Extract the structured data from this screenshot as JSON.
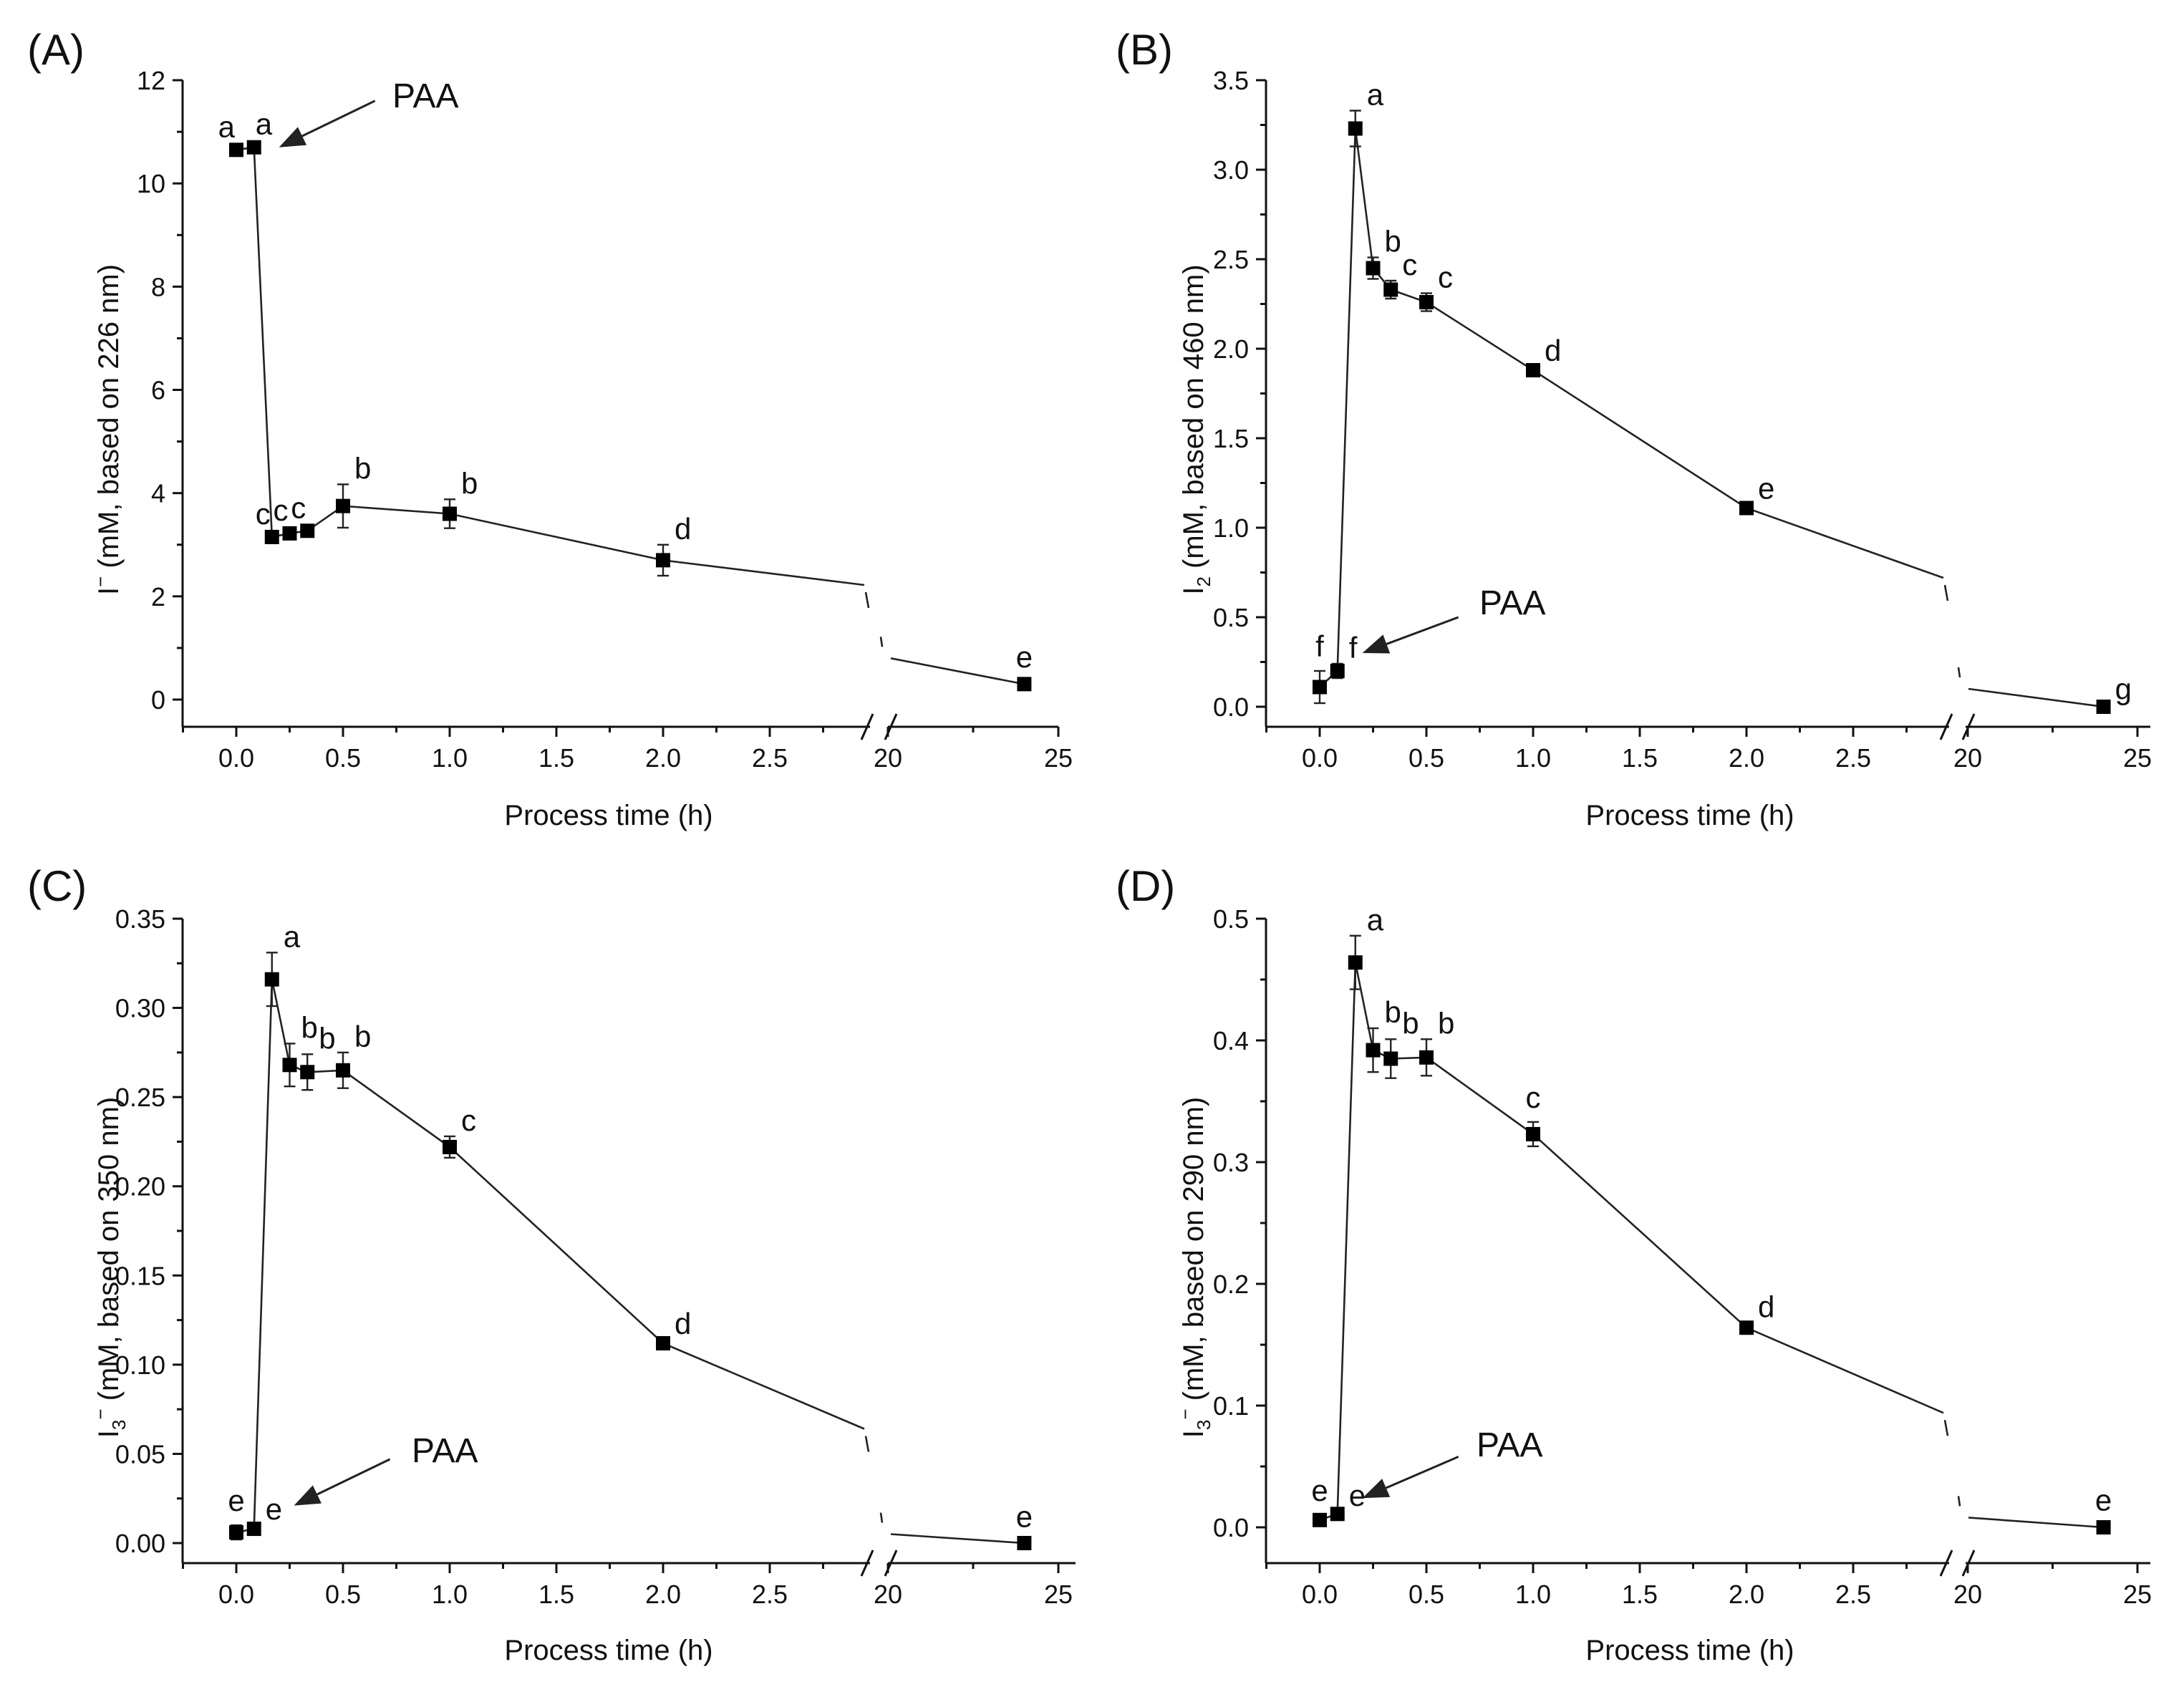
{
  "figure": {
    "panels": [
      {
        "id": "A",
        "panel_label": "(A)",
        "ylabel_main": "I",
        "ylabel_sub": "",
        "ylabel_sup": "−",
        "ylabel_rest": " (mM, based on 226 nm)",
        "xlabel": "Process time (h)",
        "annotation": "PAA"
      },
      {
        "id": "B",
        "panel_label": "(B)",
        "ylabel_main": "I",
        "ylabel_sub": "2",
        "ylabel_sup": "",
        "ylabel_rest": " (mM, based on 460 nm)",
        "xlabel": "Process time (h)",
        "annotation": "PAA"
      },
      {
        "id": "C",
        "panel_label": "(C)",
        "ylabel_main": "I",
        "ylabel_sub": "3",
        "ylabel_sup": "−",
        "ylabel_rest": " (mM, based on 350 nm)",
        "xlabel": "Process time (h)",
        "annotation": "PAA"
      },
      {
        "id": "D",
        "panel_label": "(D)",
        "ylabel_main": "I",
        "ylabel_sub": "3",
        "ylabel_sup": "−",
        "ylabel_rest": " (mM, based on 290 nm)",
        "xlabel": "Process time (h)",
        "annotation": "PAA"
      }
    ]
  },
  "chart_data": [
    {
      "type": "line",
      "panel": "A",
      "title": "",
      "xlabel": "Process time (h)",
      "ylabel": "I− (mM, based on 226 nm)",
      "x_break": {
        "from": 2.9,
        "to": 20
      },
      "x_segment1_range": [
        -0.25,
        2.9
      ],
      "x_segment2_range": [
        20,
        25
      ],
      "ylim": [
        -0.5,
        12
      ],
      "x_ticks_seg1": [
        "0.0",
        "0.5",
        "1.0",
        "1.5",
        "2.0",
        "2.5"
      ],
      "x_ticks_seg2": [
        "20",
        "25"
      ],
      "y_ticks": [
        "0",
        "2",
        "4",
        "6",
        "8",
        "10",
        "12"
      ],
      "y_tick_values": [
        0,
        2,
        4,
        6,
        8,
        10,
        12
      ],
      "x_tick_values_seg1": [
        0.0,
        0.5,
        1.0,
        1.5,
        2.0,
        2.5
      ],
      "x_tick_values_seg2": [
        20,
        25
      ],
      "x": [
        0,
        0.083,
        0.167,
        0.25,
        0.333,
        0.5,
        1.0,
        2.0,
        24
      ],
      "y": [
        10.65,
        10.7,
        3.15,
        3.22,
        3.27,
        3.75,
        3.6,
        2.7,
        0.3
      ],
      "error": [
        0.08,
        0.08,
        0.08,
        0.08,
        0.1,
        0.42,
        0.28,
        0.3,
        0.05
      ],
      "labels": [
        "a",
        "a",
        "c",
        "c",
        "c",
        "b",
        "b",
        "d",
        "e"
      ],
      "label_positions": [
        "left",
        "right",
        "left",
        "left",
        "left",
        "top-right",
        "top-right",
        "top-right",
        "top"
      ],
      "break_line_y": [
        2.22,
        0.8
      ],
      "annotation_arrow": {
        "text": "PAA",
        "tip_x": 0.2,
        "tip_y": 10.7,
        "tail_x": 0.65,
        "tail_y": 11.6
      }
    },
    {
      "type": "line",
      "panel": "B",
      "title": "",
      "xlabel": "Process time (h)",
      "ylabel": "I2 (mM, based on 460 nm)",
      "x_break": {
        "from": 2.9,
        "to": 20
      },
      "x_segment1_range": [
        -0.25,
        2.9
      ],
      "x_segment2_range": [
        20,
        25
      ],
      "ylim": [
        -0.1,
        3.5
      ],
      "x_ticks_seg1": [
        "0.0",
        "0.5",
        "1.0",
        "1.5",
        "2.0",
        "2.5"
      ],
      "x_ticks_seg2": [
        "20",
        "25"
      ],
      "y_ticks": [
        "0.0",
        "0.5",
        "1.0",
        "1.5",
        "2.0",
        "2.5",
        "3.0",
        "3.5"
      ],
      "y_tick_values": [
        0.0,
        0.5,
        1.0,
        1.5,
        2.0,
        2.5,
        3.0,
        3.5
      ],
      "x_tick_values_seg1": [
        0.0,
        0.5,
        1.0,
        1.5,
        2.0,
        2.5
      ],
      "x_tick_values_seg2": [
        20,
        25
      ],
      "x": [
        0,
        0.083,
        0.167,
        0.25,
        0.333,
        0.5,
        1.0,
        2.0,
        24
      ],
      "y": [
        0.11,
        0.2,
        3.23,
        2.45,
        2.33,
        2.26,
        1.88,
        1.11,
        0.0
      ],
      "error": [
        0.09,
        0.04,
        0.1,
        0.06,
        0.05,
        0.05,
        0.02,
        0.02,
        0.01
      ],
      "labels": [
        "f",
        "f",
        "a",
        "b",
        "c",
        "c",
        "d",
        "e",
        "g"
      ],
      "label_positions": [
        "top",
        "top-right",
        "top-right",
        "top-right",
        "top-right",
        "top-right",
        "top-right",
        "top-right",
        "top-right"
      ],
      "break_line_y": [
        0.72,
        0.1
      ],
      "annotation_arrow": {
        "text": "PAA",
        "tip_x": 0.2,
        "tip_y": 0.3,
        "tail_x": 0.65,
        "tail_y": 0.5
      }
    },
    {
      "type": "line",
      "panel": "C",
      "title": "",
      "xlabel": "Process time (h)",
      "ylabel": "I3− (mM, based on 350 nm)",
      "x_break": {
        "from": 2.9,
        "to": 20
      },
      "x_segment1_range": [
        -0.25,
        2.9
      ],
      "x_segment2_range": [
        20,
        25
      ],
      "ylim": [
        -0.012,
        0.35
      ],
      "x_ticks_seg1": [
        "0.0",
        "0.5",
        "1.0",
        "1.5",
        "2.0",
        "2.5"
      ],
      "x_ticks_seg2": [
        "20",
        "25"
      ],
      "y_ticks": [
        "0.00",
        "0.05",
        "0.10",
        "0.15",
        "0.20",
        "0.25",
        "0.30",
        "0.35"
      ],
      "y_tick_values": [
        0.0,
        0.05,
        0.1,
        0.15,
        0.2,
        0.25,
        0.3,
        0.35
      ],
      "x_tick_values_seg1": [
        0.0,
        0.5,
        1.0,
        1.5,
        2.0,
        2.5
      ],
      "x_tick_values_seg2": [
        20,
        25
      ],
      "x": [
        0,
        0.083,
        0.167,
        0.25,
        0.333,
        0.5,
        1.0,
        2.0,
        24
      ],
      "y": [
        0.006,
        0.008,
        0.316,
        0.268,
        0.264,
        0.265,
        0.222,
        0.112,
        0.0
      ],
      "error": [
        0.004,
        0.002,
        0.015,
        0.012,
        0.01,
        0.01,
        0.006,
        0.002,
        0.001
      ],
      "labels": [
        "e",
        "e",
        "a",
        "b",
        "b",
        "b",
        "c",
        "d",
        "e"
      ],
      "label_positions": [
        "top",
        "top-right",
        "top-right",
        "top-right",
        "top-right",
        "top-right",
        "top-right",
        "top-right",
        "top"
      ],
      "break_line_y": [
        0.064,
        0.005
      ],
      "annotation_arrow": {
        "text": "PAA",
        "tip_x": 0.27,
        "tip_y": 0.021,
        "tail_x": 0.72,
        "tail_y": 0.047
      }
    },
    {
      "type": "line",
      "panel": "D",
      "title": "",
      "xlabel": "Process time (h)",
      "ylabel": "I3− (mM, based on 290 nm)",
      "x_break": {
        "from": 2.9,
        "to": 20
      },
      "x_segment1_range": [
        -0.25,
        2.9
      ],
      "x_segment2_range": [
        20,
        25
      ],
      "ylim": [
        -0.03,
        0.5
      ],
      "x_ticks_seg1": [
        "0.0",
        "0.5",
        "1.0",
        "1.5",
        "2.0",
        "2.5"
      ],
      "x_ticks_seg2": [
        "20",
        "25"
      ],
      "y_ticks": [
        "0.0",
        "0.1",
        "0.2",
        "0.3",
        "0.4",
        "0.5"
      ],
      "y_tick_values": [
        0.0,
        0.1,
        0.2,
        0.3,
        0.4,
        0.5
      ],
      "x_tick_values_seg1": [
        0.0,
        0.5,
        1.0,
        1.5,
        2.0,
        2.5
      ],
      "x_tick_values_seg2": [
        20,
        25
      ],
      "x": [
        0,
        0.083,
        0.167,
        0.25,
        0.333,
        0.5,
        1.0,
        2.0,
        24
      ],
      "y": [
        0.006,
        0.011,
        0.464,
        0.392,
        0.385,
        0.386,
        0.323,
        0.164,
        0.0
      ],
      "error": [
        0.004,
        0.002,
        0.022,
        0.018,
        0.016,
        0.015,
        0.01,
        0.004,
        0.002
      ],
      "labels": [
        "e",
        "e",
        "a",
        "b",
        "b",
        "b",
        "c",
        "d",
        "e"
      ],
      "label_positions": [
        "top",
        "top-right",
        "top-right",
        "top-right",
        "top-right",
        "top-right",
        "top",
        "top-right",
        "top"
      ],
      "break_line_y": [
        0.094,
        0.008
      ],
      "annotation_arrow": {
        "text": "PAA",
        "tip_x": 0.2,
        "tip_y": 0.024,
        "tail_x": 0.65,
        "tail_y": 0.058
      }
    }
  ]
}
